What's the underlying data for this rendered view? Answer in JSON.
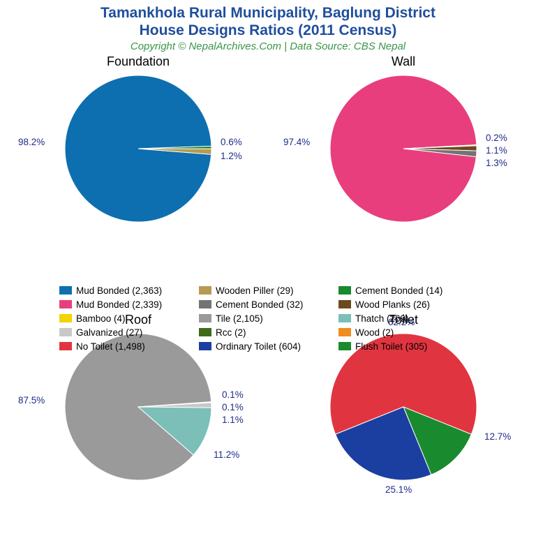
{
  "title": {
    "line1": "Tamankhola Rural Municipality, Baglung District",
    "line2": "House Designs Ratios (2011 Census)",
    "subtitle": "Copyright © NepalArchives.Com | Data Source: CBS Nepal",
    "title_color": "#1f4e9c",
    "subtitle_color": "#3a9448",
    "title_fontsize": 21,
    "subtitle_fontsize": 15
  },
  "label_style": {
    "color": "#1f2c8a",
    "fontsize": 13.5
  },
  "legend_columns": 3,
  "legend": [
    {
      "label": "Mud Bonded (2,363)",
      "color": "#0d6fb0"
    },
    {
      "label": "Wooden Piller (29)",
      "color": "#b89a53"
    },
    {
      "label": "Cement Bonded (14)",
      "color": "#1a8a2e"
    },
    {
      "label": "Mud Bonded (2,339)",
      "color": "#e83e7e"
    },
    {
      "label": "Cement Bonded (32)",
      "color": "#737373"
    },
    {
      "label": "Wood Planks (26)",
      "color": "#6b4a1f"
    },
    {
      "label": "Bamboo (4)",
      "color": "#f2d400"
    },
    {
      "label": "Tile (2,105)",
      "color": "#9a9a9a"
    },
    {
      "label": "Thatch (269)",
      "color": "#7bbfb8"
    },
    {
      "label": "Galvanized (27)",
      "color": "#c8c8c8"
    },
    {
      "label": "Rcc (2)",
      "color": "#3f6b1a"
    },
    {
      "label": "Wood (2)",
      "color": "#f08c1f"
    },
    {
      "label": "No Toilet (1,498)",
      "color": "#e03540"
    },
    {
      "label": "Ordinary Toilet (604)",
      "color": "#1a3fa0"
    },
    {
      "label": "Flush Toilet (305)",
      "color": "#1a8a2e"
    }
  ],
  "charts": {
    "foundation": {
      "title": "Foundation",
      "pie_radius": 105,
      "slices": [
        {
          "pct": 98.2,
          "color": "#0d6fb0",
          "label": "98.2%",
          "label_pos": "left"
        },
        {
          "pct": 0.6,
          "color": "#1a8a2e",
          "label": "0.6%",
          "label_pos": "right-top"
        },
        {
          "pct": 1.2,
          "color": "#b89a53",
          "label": "1.2%",
          "label_pos": "right-bottom"
        }
      ]
    },
    "wall": {
      "title": "Wall",
      "pie_radius": 105,
      "slices": [
        {
          "pct": 97.4,
          "color": "#e83e7e",
          "label": "97.4%",
          "label_pos": "left"
        },
        {
          "pct": 0.2,
          "color": "#f2d400",
          "label": "0.2%",
          "label_pos": "right-top"
        },
        {
          "pct": 1.1,
          "color": "#6b4a1f",
          "label": "1.1%",
          "label_pos": "right-mid"
        },
        {
          "pct": 1.3,
          "color": "#737373",
          "label": "1.3%",
          "label_pos": "right-bottom"
        }
      ]
    },
    "roof": {
      "title": "Roof",
      "pie_radius": 105,
      "slices": [
        {
          "pct": 87.5,
          "color": "#9a9a9a",
          "label": "87.5%",
          "label_pos": "left"
        },
        {
          "pct": 0.1,
          "color": "#3f6b1a",
          "label": "0.1%",
          "label_pos": "right-top"
        },
        {
          "pct": 0.1,
          "color": "#f08c1f",
          "label": "0.1%",
          "label_pos": "right-2"
        },
        {
          "pct": 1.1,
          "color": "#c8c8c8",
          "label": "1.1%",
          "label_pos": "right-3"
        },
        {
          "pct": 11.2,
          "color": "#7bbfb8",
          "label": "11.2%",
          "label_pos": "right-bottom"
        }
      ]
    },
    "toilet": {
      "title": "Toilet",
      "pie_radius": 105,
      "slices": [
        {
          "pct": 62.2,
          "color": "#e03540",
          "label": "62.2%",
          "label_pos": "top"
        },
        {
          "pct": 12.7,
          "color": "#1a8a2e",
          "label": "12.7%",
          "label_pos": "right"
        },
        {
          "pct": 25.1,
          "color": "#1a3fa0",
          "label": "25.1%",
          "label_pos": "bottom"
        }
      ]
    }
  }
}
